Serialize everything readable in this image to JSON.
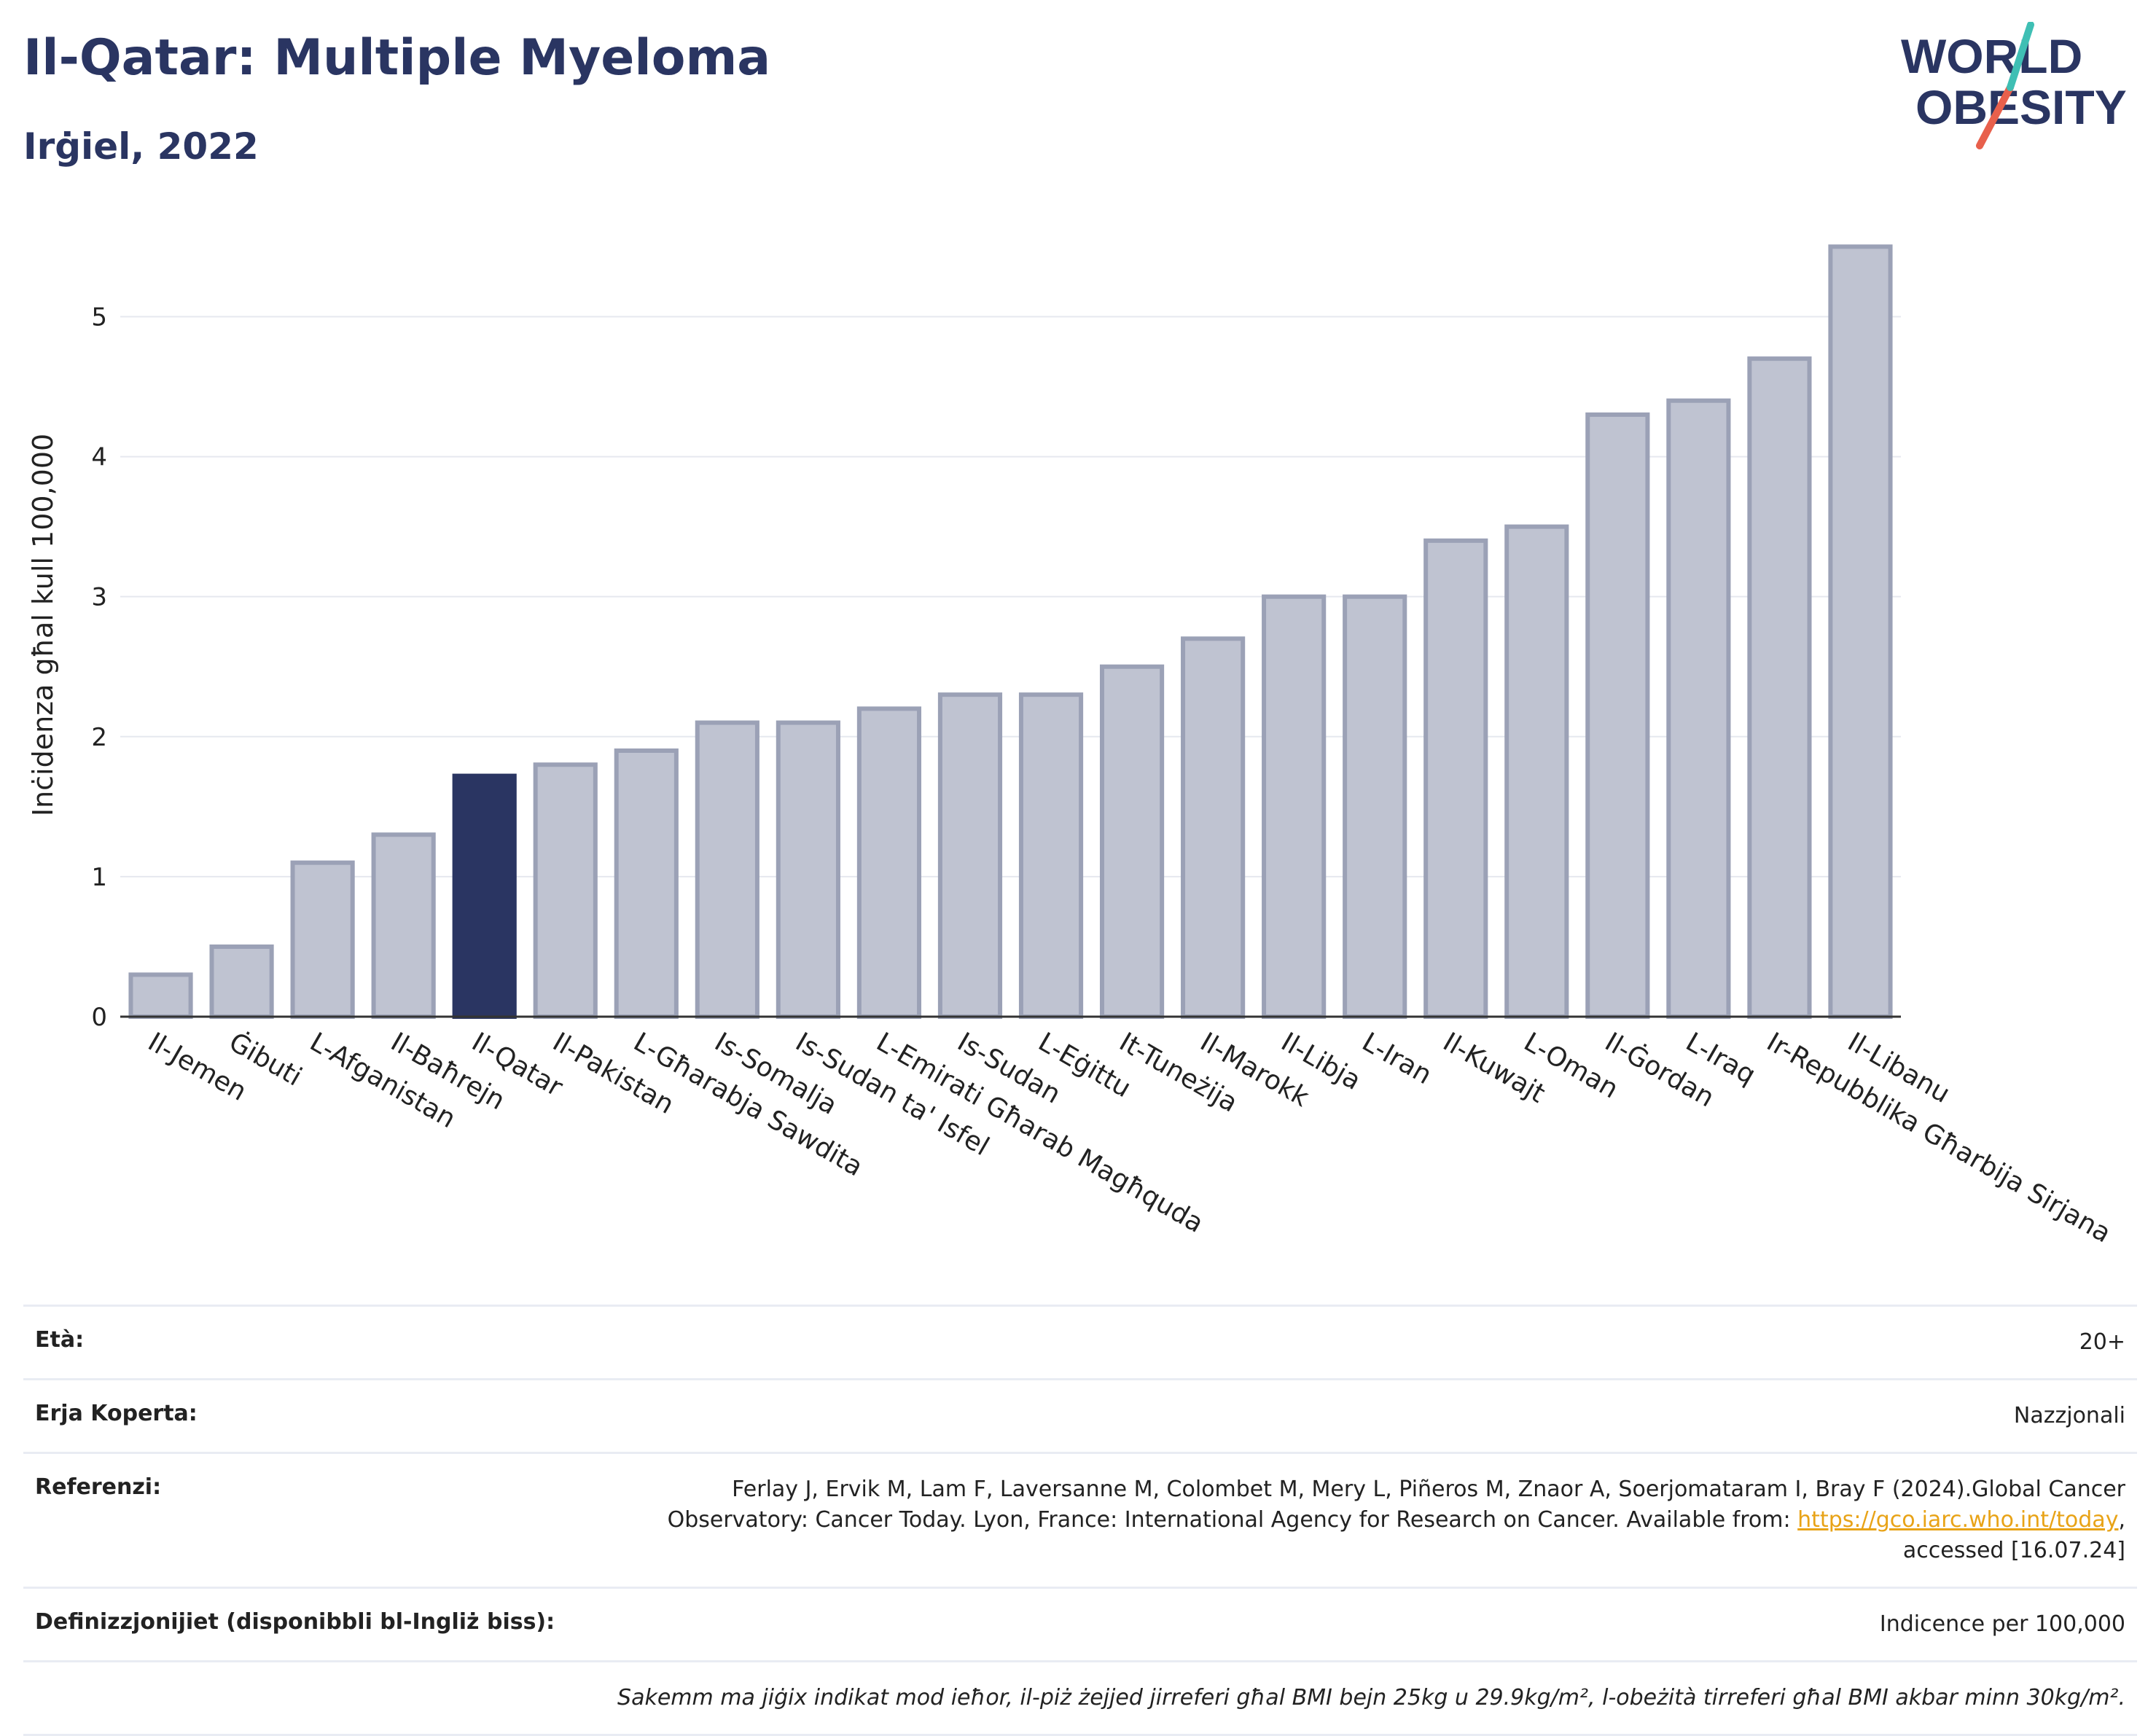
{
  "header": {
    "title": "Il-Qatar: Multiple Myeloma",
    "subtitle": "Irġiel, 2022"
  },
  "logo": {
    "line1": "WORLD",
    "line2": "OBESITY",
    "accent_teal": "#3fbfb4",
    "accent_red": "#e8604c"
  },
  "colors": {
    "bar_default": "#bfc3d1",
    "bar_border": "#9ba1b6",
    "bar_highlight": "#2a3562",
    "title": "#2a3562"
  },
  "chart_data": {
    "type": "bar",
    "ylabel": "Inċidenza għal kull 100,000",
    "ylim": [
      0,
      5.7
    ],
    "yticks": [
      0,
      1,
      2,
      3,
      4,
      5
    ],
    "grid": true,
    "highlight": "Il-Qatar",
    "categories": [
      "Il-Jemen",
      "Ġibuti",
      "L-Afganistan",
      "Il-Baħrejn",
      "Il-Qatar",
      "Il-Pakistan",
      "L-Għarabja Sawdita",
      "Is-Somalja",
      "Is-Sudan ta' Isfel",
      "L-Emirati Għarab Magħquda",
      "Is-Sudan",
      "L-Eġittu",
      "It-Tuneżija",
      "Il-Marokk",
      "Il-Libja",
      "L-Iran",
      "Il-Kuwajt",
      "L-Oman",
      "Il-Ġordan",
      "L-Iraq",
      "Ir-Repubblika Għarbija Sirjana",
      "Il-Libanu"
    ],
    "values": [
      0.3,
      0.5,
      1.1,
      1.3,
      1.72,
      1.8,
      1.9,
      2.1,
      2.1,
      2.2,
      2.3,
      2.3,
      2.5,
      2.7,
      3.0,
      3.0,
      3.4,
      3.5,
      4.3,
      4.4,
      4.7,
      5.5
    ]
  },
  "info": {
    "age_label": "Età:",
    "age_value": "20+",
    "area_label": "Erja Koperta:",
    "area_value": "Nazzjonali",
    "ref_label": "Referenzi:",
    "ref_text_1": "Ferlay J, Ervik M, Lam F, Laversanne M, Colombet M, Mery L, Piñeros M, Znaor A, Soerjomataram I, Bray F (2024).Global Cancer Observatory: Cancer Today. Lyon, France: International Agency for Research on Cancer. Available from: ",
    "ref_link": "https://gco.iarc.who.int/today",
    "ref_text_2": ", accessed [16.07.24]",
    "def_label": "Definizzjonijiet (disponibbli bl-Ingliż biss):",
    "def_value": "Indicence per 100,000",
    "note": "Sakemm ma jiġix indikat mod ieħor, il-piż żejjed jirreferi għal BMI bejn 25kg u 29.9kg/m², l-obeżità tirreferi għal BMI akbar minn 30kg/m²."
  }
}
